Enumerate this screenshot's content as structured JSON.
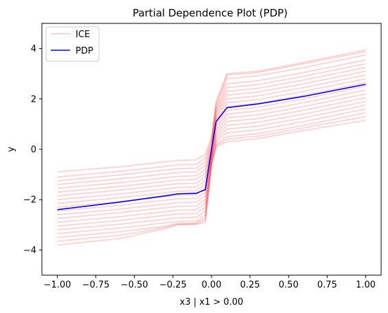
{
  "chart_data": {
    "type": "line",
    "title": "Partial Dependence Plot (PDP)",
    "xlabel": "x3 | x1 > 0.00",
    "ylabel": "y",
    "xlim": [
      -1.1,
      1.1
    ],
    "ylim": [
      -5,
      5
    ],
    "xticks": [
      -1.0,
      -0.75,
      -0.5,
      -0.25,
      0.0,
      0.25,
      0.5,
      0.75,
      1.0
    ],
    "xtick_labels": [
      "−1.00",
      "−0.75",
      "−0.50",
      "−0.25",
      "0.00",
      "0.25",
      "0.50",
      "0.75",
      "1.00"
    ],
    "yticks": [
      -4,
      -2,
      0,
      2,
      4
    ],
    "ytick_labels": [
      "−4",
      "−2",
      "0",
      "2",
      "4"
    ],
    "grid": false,
    "legend": {
      "placement": "top-left",
      "entries": [
        "ICE",
        "PDP"
      ]
    },
    "colors": {
      "ice": "#ff0000",
      "ice_legend": "#ffc0c8",
      "pdp": "#0000ff"
    },
    "pdp": {
      "name": "PDP",
      "x": [
        -1.0,
        -0.6,
        -0.3,
        -0.22,
        -0.1,
        -0.04,
        0.0,
        0.03,
        0.1,
        0.3,
        0.6,
        1.0
      ],
      "y": [
        -2.4,
        -2.1,
        -1.85,
        -1.77,
        -1.75,
        -1.6,
        0.0,
        1.1,
        1.65,
        1.8,
        2.1,
        2.58
      ]
    },
    "ice": {
      "name": "ICE",
      "x": [
        -1.0,
        -0.6,
        -0.3,
        -0.22,
        -0.1,
        -0.04,
        0.0,
        0.03,
        0.1,
        0.3,
        0.6,
        1.0
      ],
      "curves": [
        [
          -0.9,
          -0.7,
          -0.5,
          -0.45,
          -0.42,
          -0.2,
          0.5,
          1.9,
          3.0,
          3.1,
          3.45,
          3.95
        ],
        [
          -1.1,
          -0.88,
          -0.68,
          -0.62,
          -0.6,
          -0.35,
          0.4,
          1.8,
          2.95,
          3.05,
          3.4,
          3.88
        ],
        [
          -1.25,
          -1.02,
          -0.82,
          -0.77,
          -0.75,
          -0.5,
          0.3,
          1.7,
          2.8,
          2.92,
          3.25,
          3.75
        ],
        [
          -1.4,
          -1.18,
          -0.98,
          -0.92,
          -0.9,
          -0.65,
          0.2,
          1.6,
          2.6,
          2.72,
          3.05,
          3.55
        ],
        [
          -1.55,
          -1.33,
          -1.13,
          -1.08,
          -1.05,
          -0.8,
          0.1,
          1.5,
          2.45,
          2.57,
          2.9,
          3.4
        ],
        [
          -1.7,
          -1.48,
          -1.28,
          -1.22,
          -1.2,
          -0.95,
          0.05,
          1.4,
          2.3,
          2.42,
          2.75,
          3.25
        ],
        [
          -1.85,
          -1.62,
          -1.42,
          -1.37,
          -1.35,
          -1.1,
          0.0,
          1.3,
          2.15,
          2.27,
          2.6,
          3.1
        ],
        [
          -2.0,
          -1.78,
          -1.58,
          -1.52,
          -1.5,
          -1.25,
          -0.05,
          1.2,
          2.0,
          2.12,
          2.45,
          2.95
        ],
        [
          -2.15,
          -1.93,
          -1.72,
          -1.67,
          -1.65,
          -1.4,
          -0.1,
          1.1,
          1.85,
          1.97,
          2.3,
          2.8
        ],
        [
          -2.3,
          -2.08,
          -1.88,
          -1.82,
          -1.8,
          -1.55,
          -0.15,
          1.0,
          1.7,
          1.82,
          2.15,
          2.65
        ],
        [
          -2.45,
          -2.23,
          -2.02,
          -1.97,
          -1.95,
          -1.7,
          -0.2,
          0.9,
          1.55,
          1.67,
          2.0,
          2.5
        ],
        [
          -2.6,
          -2.38,
          -2.18,
          -2.12,
          -2.1,
          -1.85,
          -0.25,
          0.8,
          1.4,
          1.52,
          1.85,
          2.35
        ],
        [
          -2.75,
          -2.52,
          -2.32,
          -2.27,
          -2.25,
          -2.0,
          -0.3,
          0.7,
          1.25,
          1.37,
          1.7,
          2.2
        ],
        [
          -2.9,
          -2.68,
          -2.48,
          -2.42,
          -2.4,
          -2.15,
          -0.35,
          0.6,
          1.1,
          1.22,
          1.55,
          2.05
        ],
        [
          -3.05,
          -2.83,
          -2.62,
          -2.57,
          -2.55,
          -2.3,
          -0.4,
          0.5,
          0.95,
          1.07,
          1.4,
          1.9
        ],
        [
          -3.2,
          -2.98,
          -2.78,
          -2.72,
          -2.7,
          -2.45,
          -0.45,
          0.4,
          0.8,
          0.92,
          1.25,
          1.75
        ],
        [
          -3.35,
          -3.13,
          -2.92,
          -2.87,
          -2.85,
          -2.6,
          -0.5,
          0.3,
          0.65,
          0.77,
          1.1,
          1.6
        ],
        [
          -3.5,
          -3.28,
          -3.05,
          -2.95,
          -2.93,
          -2.7,
          -0.55,
          0.2,
          0.5,
          0.62,
          0.95,
          1.45
        ],
        [
          -3.65,
          -3.42,
          -3.1,
          -2.98,
          -2.96,
          -2.8,
          -0.6,
          0.15,
          0.4,
          0.52,
          0.85,
          1.3
        ],
        [
          -3.8,
          -3.55,
          -3.15,
          -3.0,
          -2.98,
          -2.9,
          -0.65,
          0.1,
          0.3,
          0.42,
          0.75,
          1.15
        ]
      ]
    }
  }
}
